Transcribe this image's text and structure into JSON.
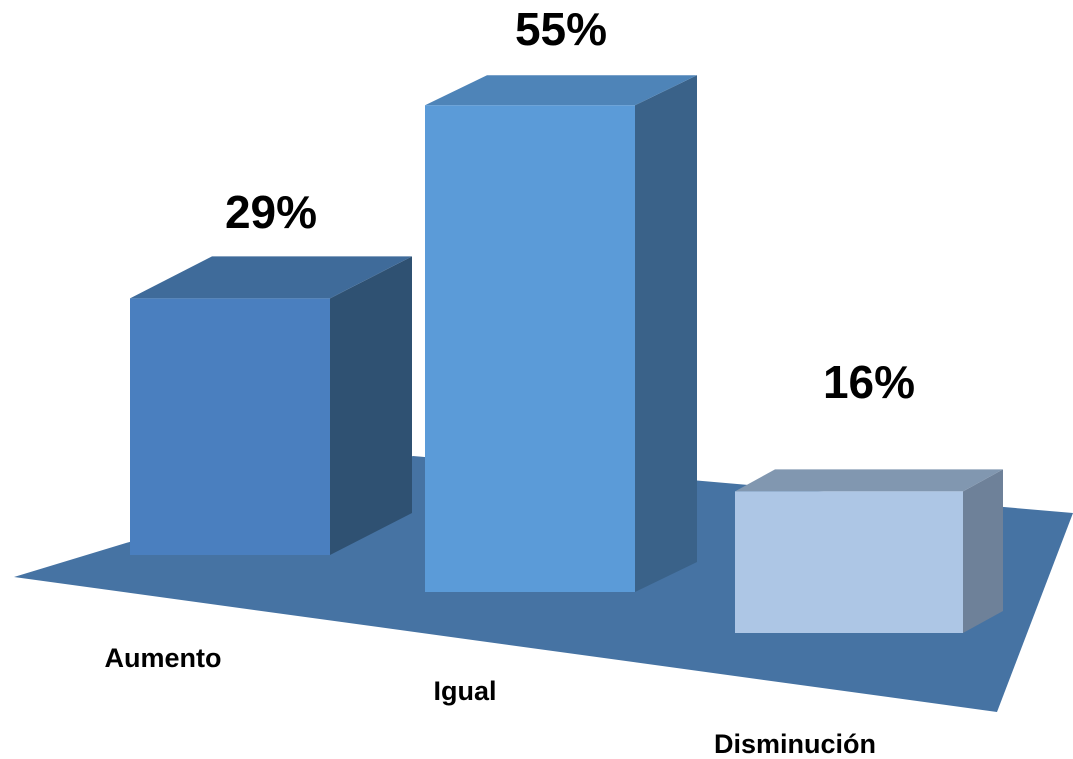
{
  "chart_data": {
    "type": "bar",
    "style": "3d-column",
    "categories": [
      "Aumento",
      "Igual",
      "Disminución"
    ],
    "values": [
      29,
      55,
      16
    ],
    "value_labels": [
      "29%",
      "55%",
      "16%"
    ],
    "unit": "%",
    "title": "",
    "xlabel": "",
    "ylabel": "",
    "ylim": [
      0,
      55
    ],
    "grid": false,
    "legend": "none",
    "colors": {
      "floor": "#4673a3",
      "bars": [
        {
          "front": "#4a7fbf",
          "side": "#2f5172",
          "top": "#3f6b9a"
        },
        {
          "front": "#5b9bd8",
          "side": "#3a6289",
          "top": "#4e84b8"
        },
        {
          "front": "#adc6e5",
          "side": "#6e8199",
          "top": "#8197b0"
        }
      ]
    }
  }
}
